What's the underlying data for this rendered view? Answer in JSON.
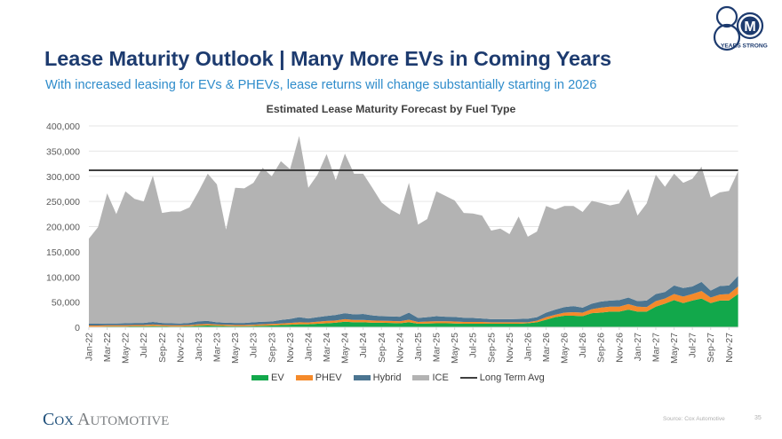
{
  "header": {
    "title": "Lease Maturity Outlook | Many More EVs in Coming Years",
    "subtitle": "With increased leasing for EVs & PHEVs, lease returns will change substantially starting in 2026",
    "badge_number": "8",
    "badge_letter": "M",
    "badge_text": "YEARS STRONG"
  },
  "footer": {
    "brand_first_initial": "C",
    "brand_first_rest": "OX",
    "brand_second_initial": "A",
    "brand_second_rest": "UTOMOTIVE",
    "source": "Source: Cox Automotive",
    "page_number": "35"
  },
  "colors": {
    "title": "#1d3b6f",
    "subtitle": "#2f8ccb",
    "EV": "#12a84b",
    "PHEV": "#f58a2a",
    "Hybrid": "#4b7591",
    "ICE": "#b3b3b3",
    "Long Term Avg": "#404040"
  },
  "chart_data": {
    "type": "area",
    "stacked": true,
    "title": "Estimated Lease Maturity Forecast by Fuel Type",
    "xlabel": "",
    "ylabel": "",
    "ylim": [
      0,
      400000
    ],
    "yticks": [
      0,
      50000,
      100000,
      150000,
      200000,
      250000,
      300000,
      350000,
      400000
    ],
    "ytick_labels": [
      "0",
      "50,000",
      "100,000",
      "150,000",
      "200,000",
      "250,000",
      "300,000",
      "350,000",
      "400,000"
    ],
    "grid": true,
    "legend_position": "bottom",
    "legend": [
      "EV",
      "PHEV",
      "Hybrid",
      "ICE",
      "Long Term Avg"
    ],
    "x": [
      "Jan-22",
      "Feb-22",
      "Mar-22",
      "Apr-22",
      "May-22",
      "Jun-22",
      "Jul-22",
      "Aug-22",
      "Sep-22",
      "Oct-22",
      "Nov-22",
      "Dec-22",
      "Jan-23",
      "Feb-23",
      "Mar-23",
      "Apr-23",
      "May-23",
      "Jun-23",
      "Jul-23",
      "Aug-23",
      "Sep-23",
      "Oct-23",
      "Nov-23",
      "Dec-23",
      "Jan-24",
      "Feb-24",
      "Mar-24",
      "Apr-24",
      "May-24",
      "Jun-24",
      "Jul-24",
      "Aug-24",
      "Sep-24",
      "Oct-24",
      "Nov-24",
      "Dec-24",
      "Jan-25",
      "Feb-25",
      "Mar-25",
      "Apr-25",
      "May-25",
      "Jun-25",
      "Jul-25",
      "Aug-25",
      "Sep-25",
      "Oct-25",
      "Nov-25",
      "Dec-25",
      "Jan-26",
      "Feb-26",
      "Mar-26",
      "Apr-26",
      "May-26",
      "Jun-26",
      "Jul-26",
      "Aug-26",
      "Sep-26",
      "Oct-26",
      "Nov-26",
      "Dec-26",
      "Jan-27",
      "Feb-27",
      "Mar-27",
      "Apr-27",
      "May-27",
      "Jun-27",
      "Jul-27",
      "Aug-27",
      "Sep-27",
      "Oct-27",
      "Nov-27",
      "Dec-27"
    ],
    "xtick_labels": [
      "Jan-22",
      "Mar-22",
      "May-22",
      "Jul-22",
      "Sep-22",
      "Nov-22",
      "Jan-23",
      "Mar-23",
      "May-23",
      "Jul-23",
      "Sep-23",
      "Nov-23",
      "Jan-24",
      "Mar-24",
      "May-24",
      "Jul-24",
      "Sep-24",
      "Nov-24",
      "Jan-25",
      "Mar-25",
      "May-25",
      "Jul-25",
      "Sep-25",
      "Nov-25",
      "Jan-26",
      "Mar-26",
      "May-26",
      "Jul-26",
      "Sep-26",
      "Nov-26",
      "Jan-27",
      "Mar-27",
      "May-27",
      "Jul-27",
      "Sep-27",
      "Nov-27"
    ],
    "series": [
      {
        "name": "EV",
        "values": [
          1000,
          1000,
          1500,
          1500,
          1500,
          2000,
          2000,
          2500,
          2000,
          1500,
          1500,
          2000,
          3000,
          3500,
          3000,
          2500,
          2000,
          2000,
          2500,
          3000,
          3500,
          4500,
          5000,
          6000,
          6000,
          7000,
          8000,
          9000,
          11000,
          10000,
          10000,
          9000,
          9000,
          8500,
          8000,
          10000,
          7000,
          7500,
          8000,
          8000,
          7500,
          7000,
          7000,
          7000,
          7000,
          7000,
          7000,
          7000,
          8000,
          10000,
          15000,
          20000,
          23000,
          23000,
          22000,
          28000,
          29000,
          31000,
          31000,
          35000,
          31000,
          31000,
          41000,
          47000,
          54000,
          48000,
          53000,
          57000,
          48000,
          53000,
          53000,
          66000
        ]
      },
      {
        "name": "PHEV",
        "values": [
          2500,
          2500,
          2500,
          2500,
          2500,
          2500,
          2500,
          3000,
          2500,
          2500,
          2500,
          2500,
          3000,
          3000,
          2500,
          2500,
          2500,
          2500,
          2500,
          3000,
          3000,
          3000,
          3500,
          4000,
          3500,
          4000,
          4500,
          4500,
          5000,
          4500,
          4500,
          4500,
          4000,
          4000,
          4000,
          5000,
          3500,
          4000,
          4000,
          4000,
          4000,
          3500,
          3500,
          3500,
          3000,
          3000,
          3000,
          3000,
          2000,
          3000,
          5000,
          5000,
          6000,
          7000,
          7000,
          8000,
          10000,
          10000,
          10000,
          11000,
          10000,
          9000,
          11000,
          10000,
          12000,
          13000,
          13000,
          15000,
          11000,
          12000,
          13000,
          15000
        ]
      },
      {
        "name": "Hybrid",
        "values": [
          3500,
          3500,
          3500,
          3500,
          4000,
          4000,
          4000,
          5000,
          4000,
          4000,
          3500,
          4000,
          6000,
          6000,
          4500,
          4000,
          4000,
          4000,
          5000,
          5000,
          5000,
          7000,
          8000,
          10000,
          8000,
          9000,
          10000,
          11000,
          12000,
          11000,
          12000,
          10000,
          9000,
          9000,
          9000,
          14000,
          8000,
          8500,
          10000,
          9000,
          9000,
          8500,
          8000,
          7000,
          6000,
          6000,
          6000,
          6500,
          7000,
          7000,
          9000,
          10000,
          11000,
          12000,
          10000,
          11000,
          12000,
          12000,
          13000,
          13000,
          11000,
          13000,
          14000,
          13000,
          17000,
          17000,
          15000,
          18000,
          14000,
          17000,
          17000,
          21000
        ]
      },
      {
        "name": "ICE",
        "values": [
          169000,
          192000,
          258500,
          217500,
          262000,
          246500,
          241500,
          290500,
          218500,
          222000,
          222500,
          229500,
          258000,
          292500,
          274000,
          185000,
          268500,
          267500,
          277000,
          306000,
          288500,
          315500,
          297500,
          360000,
          259500,
          283000,
          321500,
          267500,
          317000,
          279500,
          278500,
          253500,
          226000,
          212500,
          203000,
          258000,
          185500,
          195000,
          248000,
          240000,
          231500,
          208000,
          207500,
          204500,
          176000,
          180000,
          169000,
          203500,
          163000,
          170000,
          212000,
          199000,
          201000,
          199000,
          190000,
          204000,
          196000,
          189000,
          192000,
          216000,
          170000,
          193000,
          237000,
          209000,
          222000,
          209000,
          214000,
          229000,
          185000,
          186000,
          188000,
          208000
        ]
      },
      {
        "name": "Long Term Avg",
        "type": "line",
        "values": [
          312000
        ]
      }
    ],
    "totals_approx": [
      176000,
      199000,
      266000,
      225000,
      270000,
      255000,
      250000,
      301000,
      227000,
      230000,
      230000,
      238000,
      270000,
      305000,
      284000,
      194000,
      277000,
      276000,
      287000,
      317000,
      300000,
      330000,
      314000,
      380000,
      277000,
      303000,
      344000,
      292000,
      345000,
      305000,
      305000,
      277000,
      248000,
      234000,
      224000,
      287000,
      204000,
      215000,
      270000,
      261000,
      252000,
      227000,
      226000,
      222000,
      192000,
      196000,
      185000,
      220000,
      180000,
      190000,
      241000,
      234000,
      241000,
      241000,
      229000,
      251000,
      247000,
      242000,
      246000,
      275000,
      222000,
      246000,
      303000,
      279000,
      305000,
      287000,
      295000,
      319000,
      258000,
      268000,
      271000,
      310000
    ],
    "long_term_avg": 312000
  }
}
